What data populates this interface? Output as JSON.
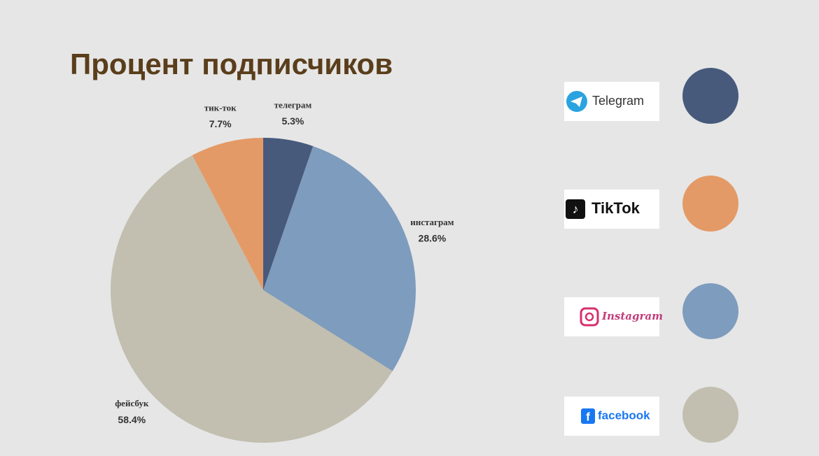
{
  "chart_data": {
    "type": "pie",
    "title": "Процент подписчиков",
    "categories": [
      "телеграм",
      "инстаграм",
      "фейсбук",
      "тик-ток"
    ],
    "values": [
      5.3,
      28.6,
      58.4,
      7.7
    ],
    "value_labels": [
      "5.3%",
      "28.6%",
      "58.4%",
      "7.7%"
    ],
    "colors": [
      "#475a7c",
      "#7e9cbd",
      "#c2bfb0",
      "#e49a66"
    ],
    "legend": [
      {
        "label": "Telegram",
        "color": "#475a7c"
      },
      {
        "label": "TikTok",
        "color": "#e49a66"
      },
      {
        "label": "Instagram",
        "color": "#7e9cbd"
      },
      {
        "label": "facebook",
        "color": "#c2bfb0"
      }
    ]
  }
}
